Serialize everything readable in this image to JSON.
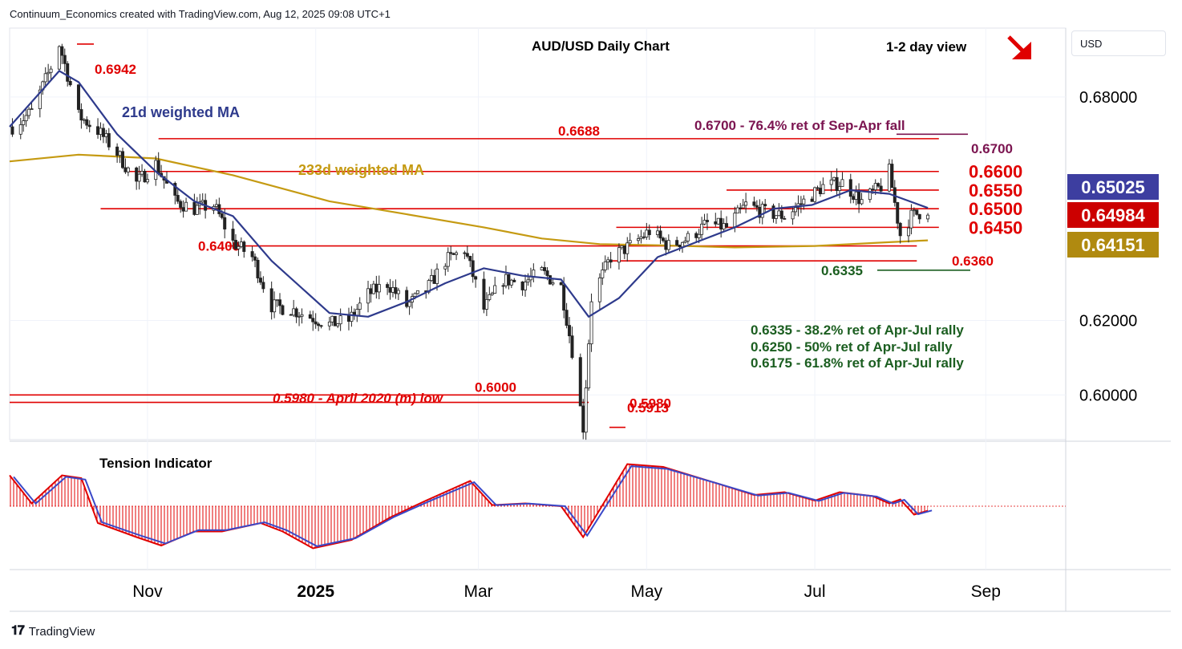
{
  "header": {
    "text": "Continuum_Economics created with TradingView.com, Aug 12, 2025 09:08 UTC+1"
  },
  "footer": {
    "brand": "TradingView",
    "logo": "tradingview-logo-icon"
  },
  "currency": "USD",
  "colors": {
    "red": "#e00000",
    "ma21": "#2e3a8c",
    "ma233": "#c59a12",
    "green": "#1b5e20",
    "purple": "#7b1450",
    "candle": "#222222",
    "grid": "#f0f3fa",
    "badge_blue": "#3d3ea0",
    "badge_red": "#cc0000",
    "badge_gold": "#b08a10"
  },
  "chart_data": [
    {
      "type": "candlestick",
      "title": "AUD/USD Daily Chart",
      "view_label": "1-2 day view",
      "view_icon": "arrow-down-right-icon",
      "x_labels": [
        {
          "label": "Nov",
          "date": "2024-11-01"
        },
        {
          "label": "2025",
          "date": "2025-01-01"
        },
        {
          "label": "Mar",
          "date": "2025-03-01"
        },
        {
          "label": "May",
          "date": "2025-05-01"
        },
        {
          "label": "Jul",
          "date": "2025-07-01"
        },
        {
          "label": "Sep",
          "date": "2025-09-01"
        }
      ],
      "x_range": [
        "2024-09-12",
        "2025-09-30"
      ],
      "y_range": [
        0.588,
        0.6985
      ],
      "y_ticks": [
        "0.68000",
        "0.62000",
        "0.60000"
      ],
      "badges": [
        {
          "label": "0.65025",
          "value": 0.65025,
          "color": "#3d3ea0"
        },
        {
          "label": "0.64984",
          "value": 0.64984,
          "color": "#cc0000"
        },
        {
          "label": "0.64151",
          "value": 0.64151,
          "color": "#b08a10"
        }
      ],
      "levels": [
        {
          "label": "0.6600",
          "value": 0.66,
          "from": "2024-10-25",
          "to": "2025-08-15",
          "big": true
        },
        {
          "label": "0.6550",
          "value": 0.655,
          "from": "2025-05-30",
          "to": "2025-08-15",
          "big": true
        },
        {
          "label": "0.6500",
          "value": 0.65,
          "from": "2024-10-15",
          "to": "2025-08-15",
          "big": true
        },
        {
          "label": "0.6450",
          "value": 0.645,
          "from": "2025-04-20",
          "to": "2025-08-15",
          "big": true
        },
        {
          "label": "0.6688",
          "value": 0.6688,
          "from": "2024-11-05",
          "to": "2025-08-15",
          "big": false
        },
        {
          "label": "0.6400",
          "value": 0.64,
          "from": "2024-11-30",
          "to": "2025-08-07",
          "big": false
        },
        {
          "label": "0.6360",
          "value": 0.636,
          "from": "2025-04-18",
          "to": "2025-08-07",
          "big": false
        },
        {
          "label": "0.6000",
          "value": 0.6,
          "from": "2024-09-12",
          "to": "2025-04-07",
          "big": false
        },
        {
          "label": "0.5980",
          "value": 0.598,
          "from": "2024-09-12",
          "to": "2025-04-10",
          "big": false
        }
      ],
      "labels": {
        "high": "0.6942",
        "low": "0.5913",
        "april_low": "0.5980 - April 2020 (m) low",
        "ma21": "21d weighted MA",
        "ma233": "233d weighted MA",
        "fib_700": "0.6700 - 76.4% ret of Sep-Apr fall",
        "lvl_700": "0.6700",
        "lvl_6335": "0.6335",
        "ret_382": "0.6335 - 38.2% ret of Apr-Jul rally",
        "ret_50": "0.6250 - 50% ret of Apr-Jul rally",
        "ret_618": "0.6175 - 61.8% ret of Apr-Jul rally"
      },
      "close_path": [
        [
          "2024-09-13",
          0.672
        ],
        [
          "2024-09-20",
          0.676
        ],
        [
          "2024-09-27",
          0.688
        ],
        [
          "2024-09-30",
          0.6942
        ],
        [
          "2024-10-07",
          0.675
        ],
        [
          "2024-10-14",
          0.671
        ],
        [
          "2024-10-21",
          0.665
        ],
        [
          "2024-10-28",
          0.657
        ],
        [
          "2024-11-04",
          0.662
        ],
        [
          "2024-11-11",
          0.652
        ],
        [
          "2024-11-18",
          0.65
        ],
        [
          "2024-11-25",
          0.651
        ],
        [
          "2024-12-02",
          0.641
        ],
        [
          "2024-12-09",
          0.637
        ],
        [
          "2024-12-16",
          0.624
        ],
        [
          "2024-12-23",
          0.623
        ],
        [
          "2024-12-30",
          0.621
        ],
        [
          "2025-01-06",
          0.619
        ],
        [
          "2025-01-13",
          0.62
        ],
        [
          "2025-01-20",
          0.627
        ],
        [
          "2025-01-27",
          0.63
        ],
        [
          "2025-02-03",
          0.624
        ],
        [
          "2025-02-10",
          0.628
        ],
        [
          "2025-02-17",
          0.636
        ],
        [
          "2025-02-24",
          0.639
        ],
        [
          "2025-03-03",
          0.623
        ],
        [
          "2025-03-10",
          0.631
        ],
        [
          "2025-03-17",
          0.63
        ],
        [
          "2025-03-24",
          0.633
        ],
        [
          "2025-03-31",
          0.629
        ],
        [
          "2025-04-04",
          0.612
        ],
        [
          "2025-04-08",
          0.5913
        ],
        [
          "2025-04-11",
          0.626
        ],
        [
          "2025-04-18",
          0.637
        ],
        [
          "2025-04-25",
          0.64
        ],
        [
          "2025-05-02",
          0.644
        ],
        [
          "2025-05-09",
          0.64
        ],
        [
          "2025-05-16",
          0.642
        ],
        [
          "2025-05-23",
          0.646
        ],
        [
          "2025-05-30",
          0.645
        ],
        [
          "2025-06-06",
          0.651
        ],
        [
          "2025-06-13",
          0.649
        ],
        [
          "2025-06-20",
          0.648
        ],
        [
          "2025-06-27",
          0.652
        ],
        [
          "2025-07-04",
          0.656
        ],
        [
          "2025-07-11",
          0.657
        ],
        [
          "2025-07-18",
          0.652
        ],
        [
          "2025-07-25",
          0.656
        ],
        [
          "2025-07-28",
          0.66
        ],
        [
          "2025-08-01",
          0.643
        ],
        [
          "2025-08-05",
          0.648
        ],
        [
          "2025-08-11",
          0.6498
        ]
      ],
      "ma21": [
        [
          "2024-09-12",
          0.672
        ],
        [
          "2024-09-30",
          0.687
        ],
        [
          "2024-10-07",
          0.684
        ],
        [
          "2024-10-21",
          0.67
        ],
        [
          "2024-11-04",
          0.66
        ],
        [
          "2024-11-18",
          0.652
        ],
        [
          "2024-12-02",
          0.648
        ],
        [
          "2024-12-16",
          0.636
        ],
        [
          "2025-01-06",
          0.622
        ],
        [
          "2025-01-20",
          0.621
        ],
        [
          "2025-02-03",
          0.625
        ],
        [
          "2025-02-17",
          0.63
        ],
        [
          "2025-03-03",
          0.634
        ],
        [
          "2025-03-17",
          0.632
        ],
        [
          "2025-03-31",
          0.631
        ],
        [
          "2025-04-10",
          0.621
        ],
        [
          "2025-04-21",
          0.626
        ],
        [
          "2025-05-05",
          0.637
        ],
        [
          "2025-05-19",
          0.641
        ],
        [
          "2025-06-02",
          0.645
        ],
        [
          "2025-06-16",
          0.65
        ],
        [
          "2025-06-30",
          0.651
        ],
        [
          "2025-07-14",
          0.655
        ],
        [
          "2025-07-28",
          0.654
        ],
        [
          "2025-08-11",
          0.6502
        ]
      ],
      "ma233": [
        [
          "2024-09-12",
          0.6627
        ],
        [
          "2024-10-07",
          0.6645
        ],
        [
          "2024-11-04",
          0.6635
        ],
        [
          "2024-12-02",
          0.659
        ],
        [
          "2025-01-06",
          0.652
        ],
        [
          "2025-02-03",
          0.6485
        ],
        [
          "2025-03-03",
          0.645
        ],
        [
          "2025-03-24",
          0.642
        ],
        [
          "2025-04-14",
          0.6405
        ],
        [
          "2025-05-05",
          0.6402
        ],
        [
          "2025-06-02",
          0.6396
        ],
        [
          "2025-07-01",
          0.64
        ],
        [
          "2025-07-28",
          0.641
        ],
        [
          "2025-08-11",
          0.6415
        ]
      ]
    },
    {
      "type": "line",
      "title": "Tension Indicator",
      "zero_line": true,
      "series": [
        {
          "values": [
            [
              "2024-09-12",
              0.55
            ],
            [
              "2024-09-20",
              0.05
            ],
            [
              "2024-10-01",
              0.55
            ],
            [
              "2024-10-08",
              0.5
            ],
            [
              "2024-10-14",
              -0.3
            ],
            [
              "2024-10-28",
              -0.55
            ],
            [
              "2024-11-06",
              -0.7
            ],
            [
              "2024-11-18",
              -0.45
            ],
            [
              "2024-11-28",
              -0.45
            ],
            [
              "2024-12-12",
              -0.3
            ],
            [
              "2024-12-20",
              -0.45
            ],
            [
              "2024-12-31",
              -0.75
            ],
            [
              "2025-01-14",
              -0.6
            ],
            [
              "2025-01-28",
              -0.2
            ],
            [
              "2025-02-10",
              0.1
            ],
            [
              "2025-02-26",
              0.45
            ],
            [
              "2025-03-06",
              0.02
            ],
            [
              "2025-03-18",
              0.05
            ],
            [
              "2025-03-31",
              0.0
            ],
            [
              "2025-04-08",
              -0.55
            ],
            [
              "2025-04-24",
              0.75
            ],
            [
              "2025-05-07",
              0.7
            ],
            [
              "2025-05-27",
              0.4
            ],
            [
              "2025-06-09",
              0.2
            ],
            [
              "2025-06-20",
              0.25
            ],
            [
              "2025-07-01",
              0.1
            ],
            [
              "2025-07-10",
              0.25
            ],
            [
              "2025-07-22",
              0.18
            ],
            [
              "2025-07-28",
              0.05
            ],
            [
              "2025-08-01",
              0.12
            ],
            [
              "2025-08-06",
              -0.15
            ],
            [
              "2025-08-11",
              -0.08
            ]
          ]
        }
      ]
    }
  ]
}
